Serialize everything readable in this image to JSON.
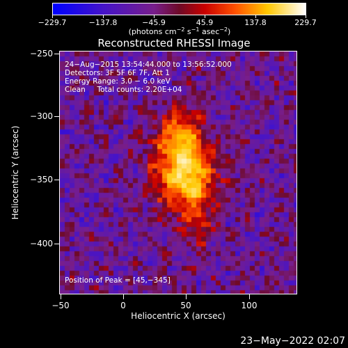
{
  "colorbar": {
    "tick_labels": [
      "−229.7",
      "−137.8",
      "−45.9",
      "45.9",
      "137.8",
      "229.7"
    ],
    "range": [
      -229.7,
      229.7
    ],
    "units_prefix": "(photons cm",
    "units_sup1": "−2",
    "units_mid": " s",
    "units_sup2": "−1",
    "units_mid2": " asec",
    "units_sup3": "−2",
    "units_suffix": ")",
    "colormap": "blue-purple-red-yellow-white"
  },
  "title": "Reconstructed RHESSI Image",
  "info": {
    "line1": "24−Aug−2015 13:54:44.000 to 13:56:52.000",
    "line2": "Detectors: 3F 5F 6F 7F, Att 1",
    "line3": "Energy Range: 3.0 − 6.0 keV",
    "line4": "Clean     Total counts: 2.20E+04"
  },
  "peak_label": "Position of Peak = [45,−345]",
  "axes": {
    "xlabel": "Heliocentric X (arcsec)",
    "ylabel": "Heliocentric Y (arcsec)",
    "x_ticks": [
      "−50",
      "0",
      "50",
      "100"
    ],
    "y_ticks": [
      "−250",
      "−300",
      "−350",
      "−400"
    ],
    "xlim": [
      -56,
      137
    ],
    "ylim": [
      -445,
      -245
    ]
  },
  "footer_date": "23−May−2022 02:07",
  "peak_position": [
    45,
    -345
  ]
}
